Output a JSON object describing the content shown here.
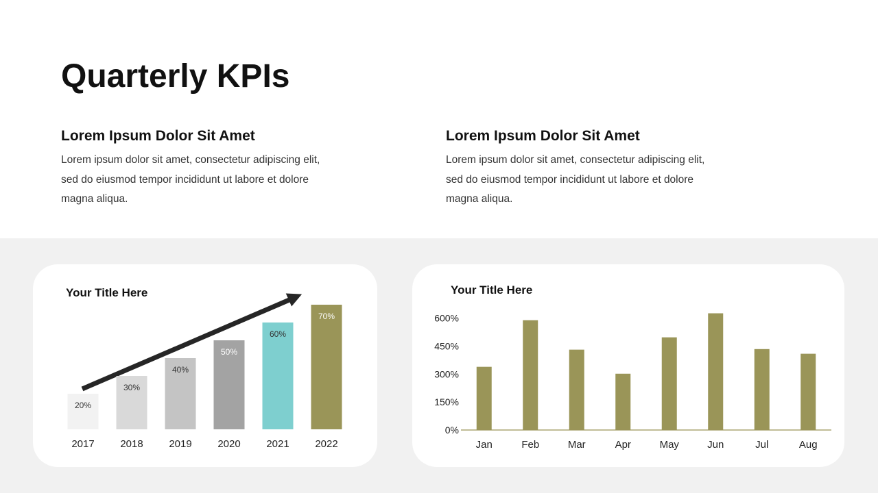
{
  "title": "Quarterly KPIs",
  "sections": [
    {
      "heading": "Lorem Ipsum Dolor Sit Amet",
      "body_lines": [
        "Lorem ipsum dolor sit amet, consectetur adipiscing elit,",
        "sed do eiusmod tempor incididunt ut labore et dolore",
        "magna aliqua."
      ]
    },
    {
      "heading": "Lorem Ipsum Dolor Sit Amet",
      "body_lines": [
        "Lorem ipsum dolor sit amet, consectetur adipiscing elit,",
        "sed do eiusmod tempor incididunt ut labore et dolore",
        "magna aliqua."
      ]
    }
  ],
  "chart_data": [
    {
      "type": "bar",
      "title": "Your Title Here",
      "categories": [
        "2017",
        "2018",
        "2019",
        "2020",
        "2021",
        "2022"
      ],
      "values": [
        20,
        30,
        40,
        50,
        60,
        70
      ],
      "value_labels": [
        "20%",
        "30%",
        "40%",
        "50%",
        "60%",
        "70%"
      ],
      "colors": [
        "#f2f2f2",
        "#d9d9d9",
        "#c4c4c4",
        "#a3a3a3",
        "#7ecfcf",
        "#9a9558"
      ]
    },
    {
      "type": "bar",
      "title": "Your Title Here",
      "categories": [
        "Jan",
        "Feb",
        "Mar",
        "Apr",
        "May",
        "Jun",
        "Jul",
        "Aug"
      ],
      "values": [
        339,
        589,
        431,
        302,
        497,
        626,
        434,
        409
      ],
      "color": "#9a9558",
      "ylim": [
        0,
        650
      ],
      "yticks": [
        {
          "value": 0,
          "label": "0%"
        },
        {
          "value": 150,
          "label": "150%"
        },
        {
          "value": 300,
          "label": "300%"
        },
        {
          "value": 450,
          "label": "450%"
        },
        {
          "value": 600,
          "label": "600%"
        }
      ],
      "grid": false
    }
  ]
}
